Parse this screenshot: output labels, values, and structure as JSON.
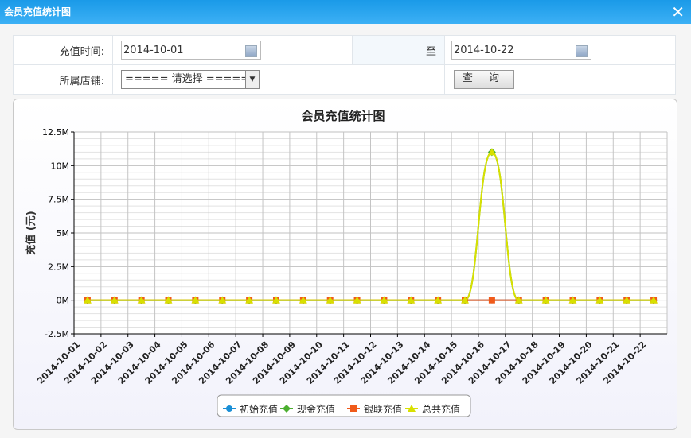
{
  "window": {
    "title": "会员充值统计图",
    "close": "✕"
  },
  "form": {
    "time_label": "充值时间:",
    "start_date": "2014-10-01",
    "to_label": "至",
    "end_date": "2014-10-22",
    "store_label": "所属店铺:",
    "store_value": "===== 请选择 =====",
    "query_label": "查 询"
  },
  "chart_data": {
    "type": "line",
    "title": "会员充值统计图",
    "ylabel": "充值 (元)",
    "xlabel": "",
    "categories": [
      "2014-10-01",
      "2014-10-02",
      "2014-10-03",
      "2014-10-04",
      "2014-10-05",
      "2014-10-06",
      "2014-10-07",
      "2014-10-08",
      "2014-10-09",
      "2014-10-10",
      "2014-10-11",
      "2014-10-12",
      "2014-10-13",
      "2014-10-14",
      "2014-10-15",
      "2014-10-16",
      "2014-10-17",
      "2014-10-18",
      "2014-10-19",
      "2014-10-20",
      "2014-10-21",
      "2014-10-22"
    ],
    "yticks": [
      "-2.5M",
      "0M",
      "2.5M",
      "5M",
      "7.5M",
      "10M",
      "12.5M"
    ],
    "ylim": [
      -2500000,
      12500000
    ],
    "grid": true,
    "legend": "bottom",
    "smooth": true,
    "series": [
      {
        "name": "初始充值",
        "color": "#1a8fd6",
        "marker": "circle",
        "values": [
          0,
          0,
          0,
          0,
          0,
          0,
          0,
          0,
          0,
          0,
          0,
          0,
          0,
          0,
          0,
          0,
          0,
          0,
          0,
          0,
          0,
          0
        ]
      },
      {
        "name": "现金充值",
        "color": "#4caf30",
        "marker": "diamond",
        "values": [
          0,
          0,
          0,
          0,
          0,
          0,
          0,
          0,
          0,
          0,
          0,
          0,
          0,
          0,
          0,
          11000000,
          0,
          0,
          0,
          0,
          0,
          0
        ]
      },
      {
        "name": "银联充值",
        "color": "#f05a1a",
        "marker": "square",
        "values": [
          0,
          0,
          0,
          0,
          0,
          0,
          0,
          0,
          0,
          0,
          0,
          0,
          0,
          0,
          0,
          0,
          0,
          0,
          0,
          0,
          0,
          0
        ]
      },
      {
        "name": "总共充值",
        "color": "#d8e000",
        "marker": "triangle",
        "values": [
          0,
          0,
          0,
          0,
          0,
          0,
          0,
          0,
          0,
          0,
          0,
          0,
          0,
          0,
          0,
          11000000,
          0,
          0,
          0,
          0,
          0,
          0
        ]
      }
    ]
  }
}
